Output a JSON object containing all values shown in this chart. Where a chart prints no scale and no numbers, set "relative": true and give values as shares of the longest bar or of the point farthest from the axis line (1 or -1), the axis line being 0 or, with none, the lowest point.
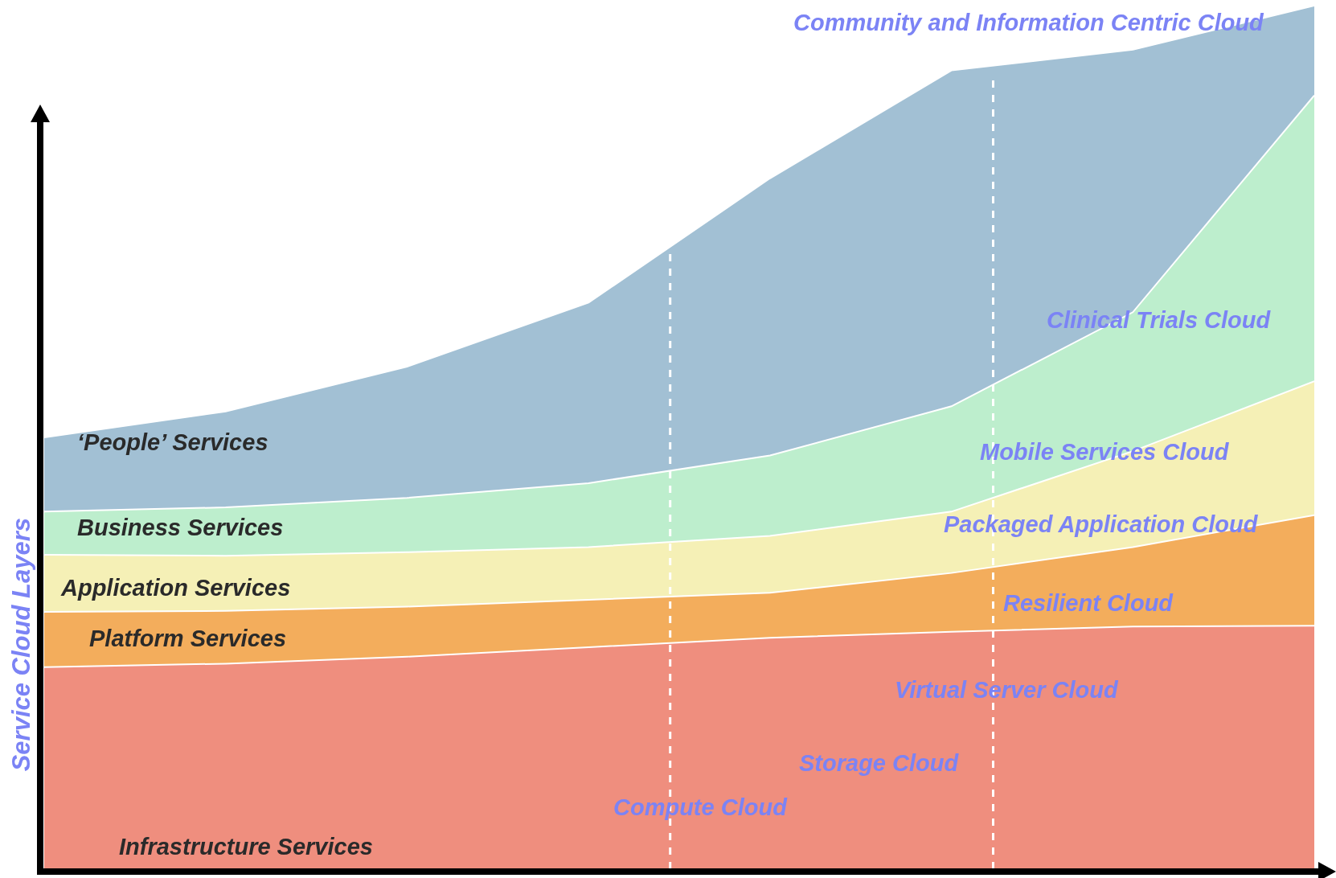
{
  "chart_data": {
    "type": "area",
    "relative": true,
    "stacked": true,
    "ylabel": "Service Cloud Layers",
    "categories": [
      null,
      null,
      null,
      null,
      null,
      null,
      null,
      null
    ],
    "series": [
      {
        "name": "Infrastructure Services",
        "color": "#ef8e7e",
        "values": [
          0.234,
          0.238,
          0.246,
          0.257,
          0.268,
          0.275,
          0.281,
          0.282
        ]
      },
      {
        "name": "Platform Services",
        "color": "#f3ad5c",
        "values": [
          0.064,
          0.061,
          0.058,
          0.055,
          0.052,
          0.068,
          0.092,
          0.128
        ]
      },
      {
        "name": "Application Services",
        "color": "#f5f0b6",
        "values": [
          0.066,
          0.064,
          0.063,
          0.061,
          0.066,
          0.071,
          0.111,
          0.155
        ]
      },
      {
        "name": "Business Services",
        "color": "#bdeecd",
        "values": [
          0.05,
          0.056,
          0.063,
          0.074,
          0.093,
          0.122,
          0.161,
          0.331
        ]
      },
      {
        "name": "‘People’ Services",
        "color": "#a2c0d4",
        "values": [
          0.086,
          0.111,
          0.152,
          0.209,
          0.321,
          0.389,
          0.304,
          0.104
        ]
      }
    ],
    "annotations": [
      "Community and Information Centric Cloud",
      "Clinical Trials Cloud",
      "Mobile Services Cloud",
      "Packaged Application Cloud",
      "Resilient Cloud",
      "Virtual Server Cloud",
      "Storage Cloud",
      "Compute Cloud"
    ]
  }
}
